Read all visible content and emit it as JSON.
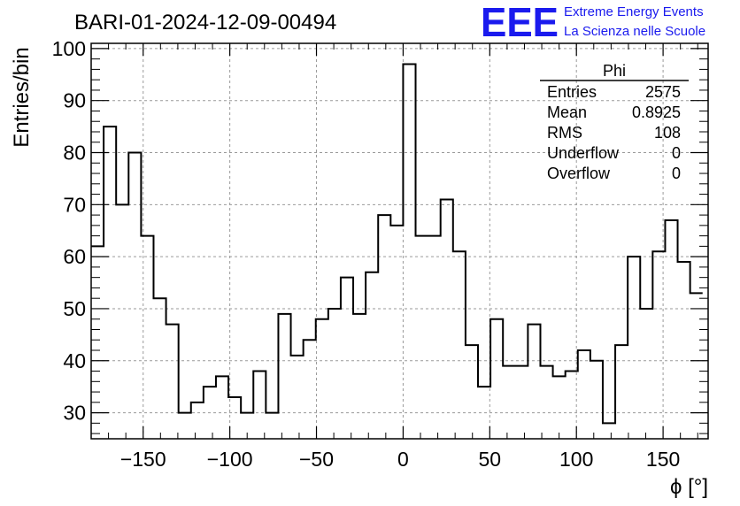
{
  "chart_data": {
    "type": "histogram",
    "title": "BARI-01-2024-12-09-00494",
    "xlabel": "ϕ [°]",
    "ylabel": "Entries/bin",
    "xlim": [
      -180,
      176
    ],
    "ylim": [
      25,
      101
    ],
    "x_ticks": [
      -150,
      -100,
      -50,
      0,
      50,
      100,
      150
    ],
    "x_tick_labels": [
      "−150",
      "−100",
      "−50",
      "0",
      "50",
      "100",
      "150"
    ],
    "y_ticks": [
      30,
      40,
      50,
      60,
      70,
      80,
      90,
      100
    ],
    "y_tick_labels": [
      "30",
      "40",
      "50",
      "60",
      "70",
      "80",
      "90",
      "100"
    ],
    "grid": true,
    "bin_start": -180,
    "bin_width": 7.2,
    "values": [
      62,
      85,
      70,
      80,
      64,
      52,
      47,
      30,
      32,
      35,
      37,
      33,
      30,
      38,
      30,
      49,
      41,
      44,
      48,
      50,
      56,
      49,
      57,
      68,
      66,
      97,
      64,
      64,
      71,
      61,
      43,
      35,
      48,
      39,
      39,
      47,
      39,
      37,
      38,
      42,
      40,
      28,
      43,
      60,
      50,
      61,
      67,
      59,
      53
    ]
  },
  "stats": {
    "title": "Phi",
    "rows": [
      {
        "label": "Entries",
        "value": "2575"
      },
      {
        "label": "Mean",
        "value": "0.8925"
      },
      {
        "label": "RMS",
        "value": "108"
      },
      {
        "label": "Underflow",
        "value": "0"
      },
      {
        "label": "Overflow",
        "value": "0"
      }
    ]
  },
  "logo": {
    "mark": "EEE",
    "line1": "Extreme Energy Events",
    "line2": "La Scienza nelle Scuole"
  }
}
